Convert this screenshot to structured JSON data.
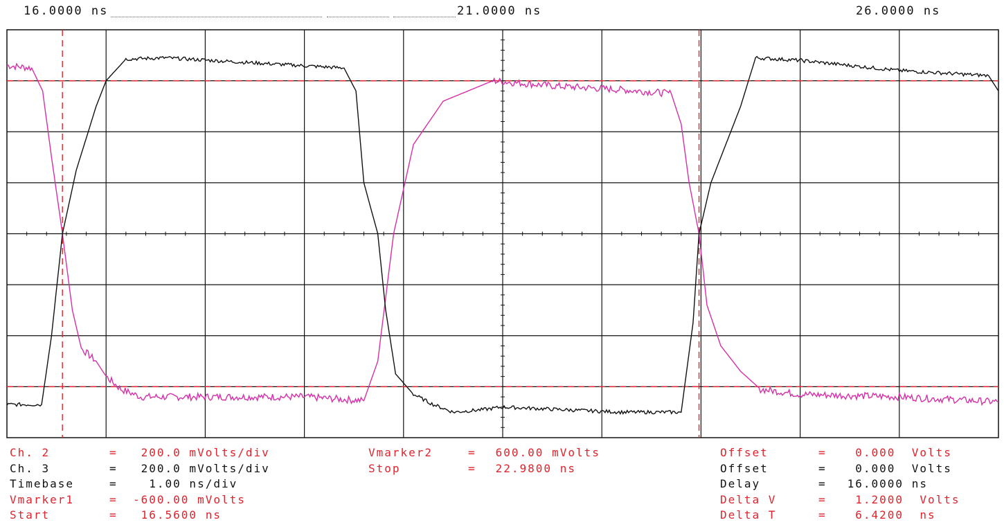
{
  "header": {
    "time_left": "16.0000 ns",
    "time_center": "21.0000 ns",
    "time_right": "26.0000 ns"
  },
  "colors": {
    "ch2": "#d62fa8",
    "ch3": "#111111",
    "marker": "#e0232c",
    "grid": "#111111",
    "info_red": "#e0232c",
    "info_black": "#111111"
  },
  "readout_left": [
    {
      "label": "Ch. 2",
      "eq": "=",
      "value": " 200.0 mVolts/div",
      "color": "red"
    },
    {
      "label": "Ch. 3",
      "eq": "=",
      "value": " 200.0 mVolts/div",
      "color": "black"
    },
    {
      "label": "Timebase",
      "eq": "=",
      "value": "  1.00 ns/div",
      "color": "black"
    },
    {
      "label": "Vmarker1",
      "eq": "=",
      "value": "-600.00 mVolts",
      "color": "red"
    },
    {
      "label": "Start",
      "eq": "=",
      "value": " 16.5600 ns",
      "color": "red"
    }
  ],
  "readout_middle": [
    {
      "label": "Vmarker2",
      "eq": "=",
      "value": " 600.00 mVolts",
      "color": "red"
    },
    {
      "label": "Stop",
      "eq": "=",
      "value": " 22.9800 ns",
      "color": "red"
    }
  ],
  "readout_right": [
    {
      "label": "Offset",
      "eq": "=",
      "value": "  0.000  Volts",
      "color": "red"
    },
    {
      "label": "Offset",
      "eq": "=",
      "value": "  0.000  Volts",
      "color": "black"
    },
    {
      "label": "Delay",
      "eq": "=",
      "value": " 16.0000 ns",
      "color": "black"
    },
    {
      "label": "Delta V",
      "eq": "=",
      "value": "  1.2000  Volts",
      "color": "red"
    },
    {
      "label": "Delta T",
      "eq": "=",
      "value": "  6.4200  ns",
      "color": "red"
    }
  ],
  "chart_data": {
    "type": "line",
    "xlim": [
      16.0,
      26.0
    ],
    "ylim": [
      -800,
      800
    ],
    "x_divisions": 10,
    "y_divisions": 8,
    "grid": true,
    "markers": {
      "time": [
        16.56,
        22.98
      ],
      "voltage": [
        -600,
        600
      ]
    },
    "series": [
      {
        "color_key": "ch2",
        "x": [
          16.0,
          16.25,
          16.36,
          16.45,
          16.56,
          16.66,
          16.75,
          16.9,
          17.0,
          17.15,
          17.35,
          17.8,
          19.0,
          19.6,
          19.74,
          19.9,
          20.1,
          20.4,
          20.9,
          21.5,
          22.2,
          22.7,
          22.8,
          22.88,
          22.98,
          23.06,
          23.2,
          23.4,
          23.6,
          24.0,
          25.0,
          26.0
        ],
        "y": [
          660,
          650,
          560,
          300,
          0,
          -300,
          -450,
          -500,
          -560,
          -610,
          -640,
          -640,
          -640,
          -655,
          -500,
          0,
          350,
          520,
          600,
          580,
          565,
          550,
          430,
          200,
          0,
          -280,
          -440,
          -540,
          -610,
          -630,
          -640,
          -660
        ]
      },
      {
        "color_key": "ch3",
        "x": [
          16.0,
          16.35,
          16.45,
          16.56,
          16.7,
          16.9,
          17.0,
          17.2,
          17.6,
          18.5,
          19.4,
          19.52,
          19.6,
          19.74,
          19.82,
          19.92,
          20.1,
          20.3,
          20.5,
          20.8,
          21.0,
          22.2,
          22.8,
          22.92,
          22.98,
          23.1,
          23.4,
          23.55,
          24.0,
          25.0,
          25.9,
          26.0
        ],
        "y": [
          -670,
          -670,
          -400,
          0,
          250,
          500,
          600,
          685,
          690,
          670,
          650,
          560,
          200,
          0,
          -300,
          -550,
          -630,
          -670,
          -700,
          -690,
          -680,
          -700,
          -700,
          -350,
          0,
          200,
          500,
          690,
          680,
          640,
          620,
          560
        ]
      }
    ]
  }
}
